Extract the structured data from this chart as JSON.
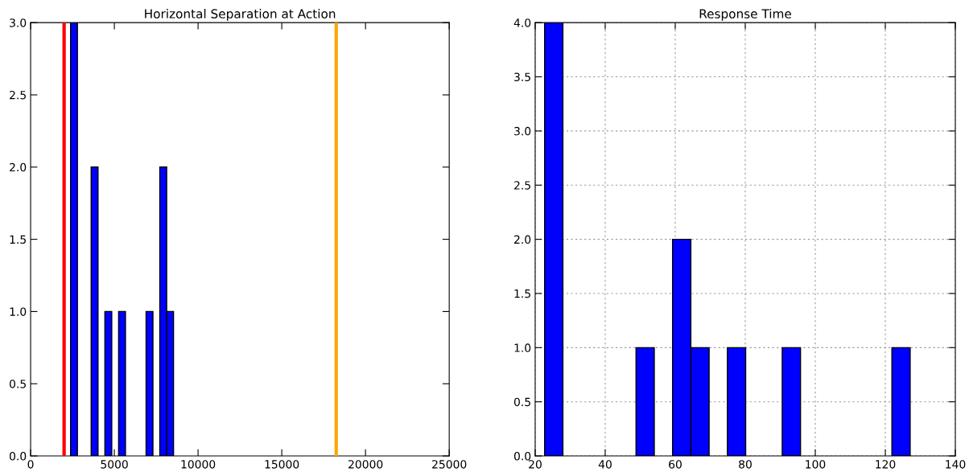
{
  "chart_data": [
    {
      "type": "histogram",
      "title": "Horizontal Separation at Action",
      "color": "#0000ff",
      "bins": [
        2385,
        2795,
        3205,
        3615,
        4025,
        4435,
        4845,
        5255,
        5665,
        6075,
        6485,
        6895,
        7305,
        7715,
        8125,
        8535
      ],
      "values": [
        3,
        0,
        0,
        2,
        0,
        1,
        0,
        1,
        0,
        0,
        0,
        1,
        0,
        2,
        1
      ],
      "xlim": [
        0,
        25000
      ],
      "xticks": [
        0,
        5000,
        10000,
        15000,
        20000,
        25000
      ],
      "ylim": [
        0,
        3
      ],
      "yticks": [
        {
          "value": 0,
          "label": "0.0"
        },
        {
          "value": 0.5,
          "label": "0.5"
        },
        {
          "value": 1,
          "label": "1.0"
        },
        {
          "value": 1.5,
          "label": "1.5"
        },
        {
          "value": 2,
          "label": "2.0"
        },
        {
          "value": 2.5,
          "label": "2.5"
        },
        {
          "value": 3,
          "label": "3.0"
        }
      ],
      "ref_lines": [
        {
          "axis": "x",
          "value": 2000,
          "color": "#ff0000"
        },
        {
          "axis": "x",
          "value": 18250,
          "color": "#ffa500"
        }
      ],
      "grid": false
    },
    {
      "type": "histogram",
      "title": "Response Time",
      "color": "#0000ff",
      "bins": [
        22.7,
        27.92,
        33.14,
        38.36,
        43.58,
        48.8,
        54.02,
        59.24,
        64.46,
        69.68,
        74.9,
        80.12,
        85.34,
        90.56,
        95.78,
        101,
        106.22,
        111.44,
        116.66,
        121.88,
        127.1
      ],
      "values": [
        4,
        0,
        0,
        0,
        0,
        1,
        0,
        2,
        1,
        0,
        1,
        0,
        0,
        1,
        0,
        0,
        0,
        0,
        0,
        1
      ],
      "xlim": [
        20,
        140
      ],
      "xticks": [
        20,
        40,
        60,
        80,
        100,
        120,
        140
      ],
      "ylim": [
        0,
        4
      ],
      "yticks": [
        {
          "value": 0,
          "label": "0.0"
        },
        {
          "value": 0.5,
          "label": "0.5"
        },
        {
          "value": 1,
          "label": "1.0"
        },
        {
          "value": 1.5,
          "label": "1.5"
        },
        {
          "value": 2,
          "label": "2.0"
        },
        {
          "value": 2.5,
          "label": "2.5"
        },
        {
          "value": 3,
          "label": "3.0"
        },
        {
          "value": 3.5,
          "label": "3.5"
        },
        {
          "value": 4,
          "label": "4.0"
        }
      ],
      "grid": true
    }
  ]
}
